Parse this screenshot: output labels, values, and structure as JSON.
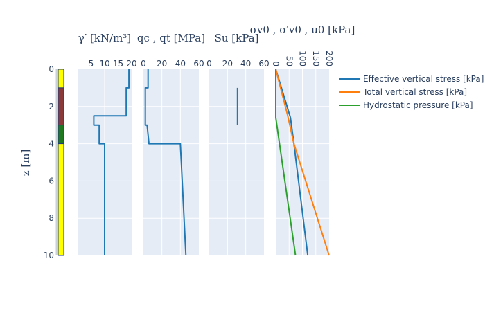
{
  "chart_data": {
    "type": "line",
    "y_axis": {
      "label": "z [m]",
      "range": [
        0,
        10
      ],
      "reversed": true,
      "ticks": [
        0,
        2,
        4,
        6,
        8,
        10
      ]
    },
    "strata": [
      {
        "top": 0,
        "bottom": 1,
        "color": "#ffff00"
      },
      {
        "top": 1,
        "bottom": 3,
        "color": "#8b3a3a"
      },
      {
        "top": 3,
        "bottom": 4,
        "color": "#1f7a1f"
      },
      {
        "top": 4,
        "bottom": 10,
        "color": "#ffff00"
      }
    ],
    "panels": [
      {
        "title": "γ′ [kN/m³]",
        "xlim": [
          0,
          20
        ],
        "ticks": [
          5,
          10,
          15,
          20
        ],
        "series": [
          {
            "color": "#1f77b4",
            "x": [
              19,
              19,
              18,
              18,
              18,
              6,
              6,
              8,
              8,
              10,
              10
            ],
            "y": [
              0,
              1,
              1,
              2.5,
              2.5,
              2.5,
              3,
              3,
              4,
              4,
              10
            ]
          }
        ]
      },
      {
        "title": "qc , qt [MPa]",
        "xlim": [
          0,
          60
        ],
        "ticks": [
          0,
          20,
          40,
          60
        ],
        "series": [
          {
            "color": "#1f77b4",
            "x": [
              5,
              5,
              2,
              2,
              2,
              2,
              4,
              6,
              40,
              40,
              46
            ],
            "y": [
              0,
              1,
              1,
              2.5,
              2.5,
              3,
              3,
              4,
              4,
              4,
              10
            ]
          }
        ]
      },
      {
        "title": "Su [kPa]",
        "xlim": [
          0,
          60
        ],
        "ticks": [
          0,
          20,
          40,
          60
        ],
        "series": [
          {
            "color": "#1f77b4",
            "x": [
              31,
              31
            ],
            "y": [
              1,
              3
            ]
          }
        ]
      },
      {
        "title": "σv0 , σ′v0 , u0 [kPa]",
        "xlim": [
          0,
          200
        ],
        "ticks": [
          0,
          50,
          100,
          150,
          200
        ],
        "tick_rotation": 90,
        "series": [
          {
            "name": "Effective vertical stress [kPa]",
            "color": "#1f77b4",
            "x": [
              0,
              55,
              68,
              120
            ],
            "y": [
              0,
              2.6,
              4,
              10
            ]
          },
          {
            "name": "Total vertical stress [kPa]",
            "color": "#ff7f0e",
            "x": [
              0,
              45,
              68,
              200
            ],
            "y": [
              0,
              2.5,
              4,
              10
            ]
          },
          {
            "name": "Hydrostatic pressure [kPa]",
            "color": "#2ca02c",
            "x": [
              0,
              0,
              74
            ],
            "y": [
              0,
              2.6,
              10
            ]
          }
        ]
      }
    ],
    "legend": [
      {
        "label": "Effective vertical stress [kPa]",
        "color": "#1f77b4"
      },
      {
        "label": "Total vertical stress [kPa]",
        "color": "#ff7f0e"
      },
      {
        "label": "Hydrostatic pressure [kPa]",
        "color": "#2ca02c"
      }
    ],
    "legend_position": "top-right",
    "grid": true,
    "plot_bg": "#e5ecf6"
  }
}
